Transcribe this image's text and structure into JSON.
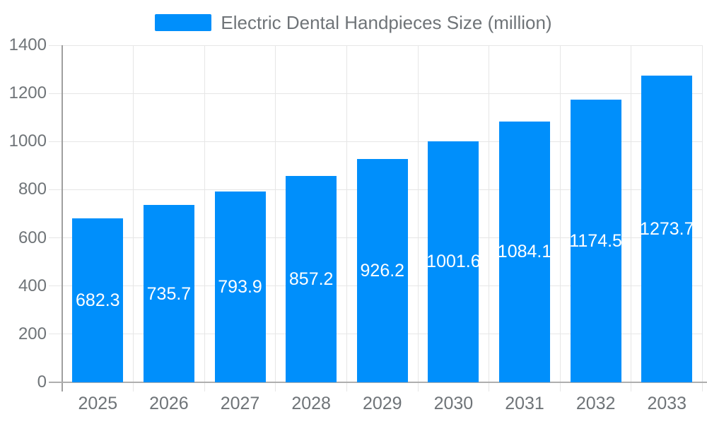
{
  "chart_data": {
    "type": "bar",
    "title": "Electric Dental Handpieces Size (million)",
    "legend": [
      {
        "label": "Electric Dental Handpieces Size (million)",
        "color": "#008FFB"
      }
    ],
    "legend_position": "top",
    "categories": [
      "2025",
      "2026",
      "2027",
      "2028",
      "2029",
      "2030",
      "2031",
      "2032",
      "2033"
    ],
    "series": [
      {
        "name": "Electric Dental Handpieces Size (million)",
        "values": [
          682.3,
          735.7,
          793.9,
          857.2,
          926.2,
          1001.6,
          1084.1,
          1174.5,
          1273.7
        ]
      }
    ],
    "data_labels": [
      "682.3",
      "735.7",
      "793.9",
      "857.2",
      "926.2",
      "1001.6",
      "1084.1",
      "1174.5",
      "1273.7"
    ],
    "xlabel": "",
    "ylabel": "",
    "ylim": [
      0,
      1400
    ],
    "yticks": [
      0,
      200,
      400,
      600,
      800,
      1000,
      1200,
      1400
    ],
    "grid": true,
    "colors": {
      "bar": "#008FFB",
      "bar_value_text": "#ffffff",
      "axis_text": "#6f7478",
      "legend_text": "#6f7478",
      "grid_line": "#e6e6e6",
      "y_axis_line": "#9f9f9f",
      "x_axis_line": "#aeaeae",
      "background": "#ffffff"
    }
  }
}
